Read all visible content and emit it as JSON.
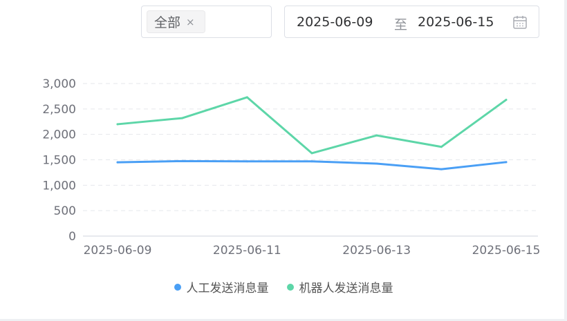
{
  "filters": {
    "category_tag": "全部",
    "tag_close": "×",
    "date_start": "2025-06-09",
    "date_separator": "至",
    "date_end": "2025-06-15"
  },
  "colors": {
    "series_human": "#4a9ff5",
    "series_bot": "#5dd6a8",
    "axis_text": "#6e7079",
    "grid": "#e5e7eb"
  },
  "chart_data": {
    "type": "line",
    "x": [
      "2025-06-09",
      "2025-06-10",
      "2025-06-11",
      "2025-06-12",
      "2025-06-13",
      "2025-06-14",
      "2025-06-15"
    ],
    "x_tick_labels": [
      "2025-06-09",
      "2025-06-11",
      "2025-06-13",
      "2025-06-15"
    ],
    "y_tick_labels": [
      "0",
      "500",
      "1,000",
      "1,500",
      "2,000",
      "2,500",
      "3,000"
    ],
    "ylim": [
      0,
      3000
    ],
    "grid": true,
    "legend_position": "bottom-center",
    "series": [
      {
        "name": "人工发送消息量",
        "values": [
          1450,
          1475,
          1470,
          1470,
          1425,
          1315,
          1455
        ]
      },
      {
        "name": "机器人发送消息量",
        "values": [
          2200,
          2320,
          2730,
          1630,
          1980,
          1755,
          2680
        ]
      }
    ]
  }
}
